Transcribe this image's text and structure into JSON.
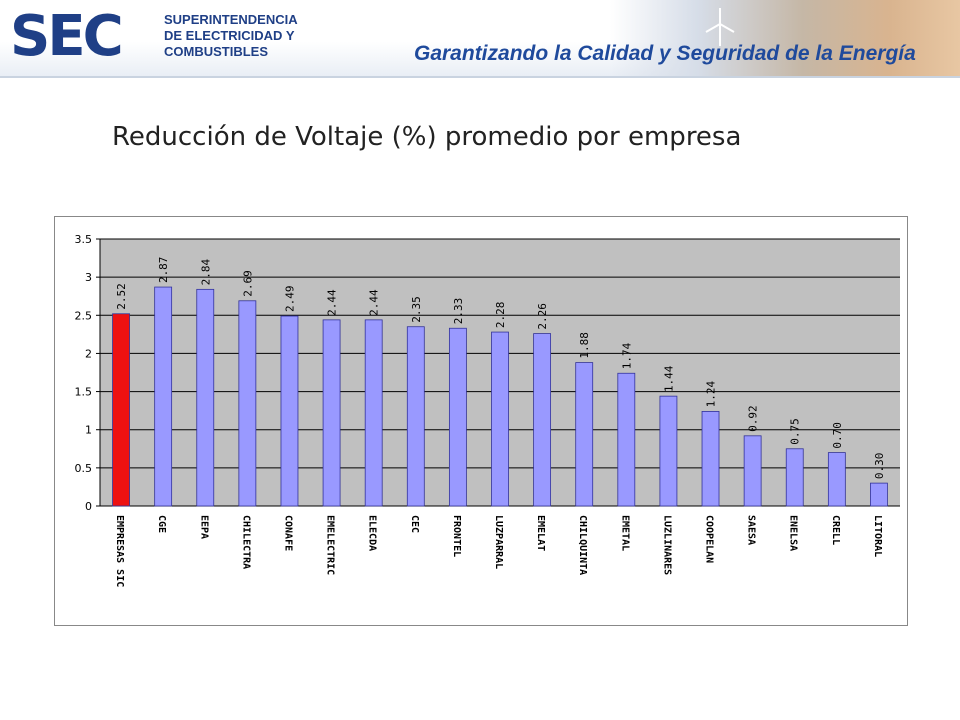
{
  "header": {
    "logo_mark": "SEC",
    "org_lines": [
      "SUPERINTENDENCIA",
      "DE ELECTRICIDAD Y",
      "COMBUSTIBLES"
    ],
    "slogan": "Garantizando la Calidad y Seguridad de la Energía"
  },
  "page": {
    "title": "Reducción de Voltaje (%) promedio por empresa"
  },
  "colors": {
    "brand": "#1f3f86",
    "highlight_bar": "#ee1111",
    "bar": "#9999ff",
    "bar_stroke": "#333399",
    "plot_bg": "#c0c0c0"
  },
  "chart_data": {
    "type": "bar",
    "title": "",
    "xlabel": "",
    "ylabel": "",
    "ylim": [
      0,
      3.5
    ],
    "yticks": [
      0,
      0.5,
      1,
      1.5,
      2,
      2.5,
      3,
      3.5
    ],
    "ytick_labels": [
      "0",
      "0.5",
      "1",
      "1.5",
      "2",
      "2.5",
      "3",
      "3.5"
    ],
    "grid": true,
    "highlight_index": 0,
    "categories": [
      "EMPRESAS SIC",
      "CGE",
      "EEPA",
      "CHILECTRA",
      "CONAFE",
      "EMELECTRIC",
      "ELECDA",
      "CEC",
      "FRONTEL",
      "LUZPARRAL",
      "EMELAT",
      "CHILQUINTA",
      "EMETAL",
      "LUZLINARES",
      "COOPELAN",
      "SAESA",
      "ENELSA",
      "CRELL",
      "LITORAL"
    ],
    "values": [
      2.52,
      2.87,
      2.84,
      2.69,
      2.49,
      2.44,
      2.44,
      2.35,
      2.33,
      2.28,
      2.26,
      1.88,
      1.74,
      1.44,
      1.24,
      0.92,
      0.75,
      0.7,
      0.3
    ],
    "value_labels": [
      "2.52",
      "2.87",
      "2.84",
      "2.69",
      "2.49",
      "2.44",
      "2.44",
      "2.35",
      "2.33",
      "2.28",
      "2.26",
      "1.88",
      "1.74",
      "1.44",
      "1.24",
      "0.92",
      "0.75",
      "0.70",
      "0.30"
    ]
  }
}
